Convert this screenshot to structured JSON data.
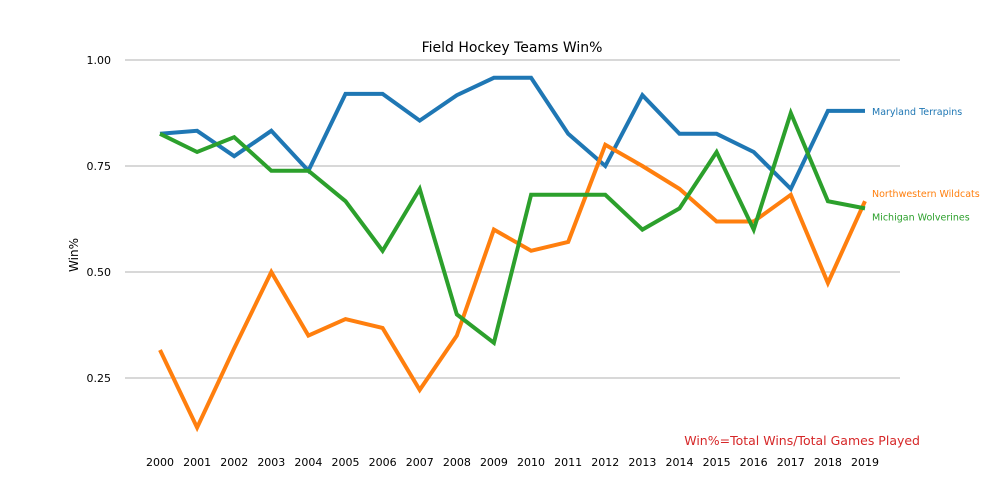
{
  "chart_data": {
    "type": "line",
    "title": "Field Hockey Teams Win%",
    "xlabel": "",
    "ylabel": "Win%",
    "x": [
      2000,
      2001,
      2002,
      2003,
      2004,
      2005,
      2006,
      2007,
      2008,
      2009,
      2010,
      2011,
      2012,
      2013,
      2014,
      2015,
      2016,
      2017,
      2018,
      2019
    ],
    "yticks": [
      0.25,
      0.5,
      0.75,
      1.0
    ],
    "ytick_labels": [
      "0.25",
      "0.50",
      "0.75",
      "1.00"
    ],
    "ylim": [
      0.1,
      1.0
    ],
    "grid": "horizontal",
    "legend": "end-of-line labels",
    "annotation": "Win%=Total Wins/Total Games Played",
    "annotation_color": "#d62728",
    "series": [
      {
        "name": "Maryland Terrapins",
        "color": "#1f77b4",
        "values": [
          0.826,
          0.833,
          0.773,
          0.833,
          0.739,
          0.92,
          0.92,
          0.857,
          0.917,
          0.958,
          0.958,
          0.826,
          0.75,
          0.917,
          0.826,
          0.826,
          0.783,
          0.696,
          0.88,
          0.88
        ]
      },
      {
        "name": "Northwestern Wildcats",
        "color": "#ff7f0e",
        "values": [
          0.316,
          0.133,
          0.32,
          0.5,
          0.35,
          0.389,
          0.368,
          0.222,
          0.35,
          0.6,
          0.55,
          0.571,
          0.8,
          0.75,
          0.696,
          0.619,
          0.619,
          0.682,
          0.474,
          0.667
        ]
      },
      {
        "name": "Michigan Wolverines",
        "color": "#2ca02c",
        "values": [
          0.826,
          0.783,
          0.818,
          0.739,
          0.739,
          0.667,
          0.55,
          0.696,
          0.4,
          0.333,
          0.682,
          0.682,
          0.682,
          0.6,
          0.65,
          0.783,
          0.6,
          0.875,
          0.667,
          0.65
        ]
      }
    ]
  }
}
